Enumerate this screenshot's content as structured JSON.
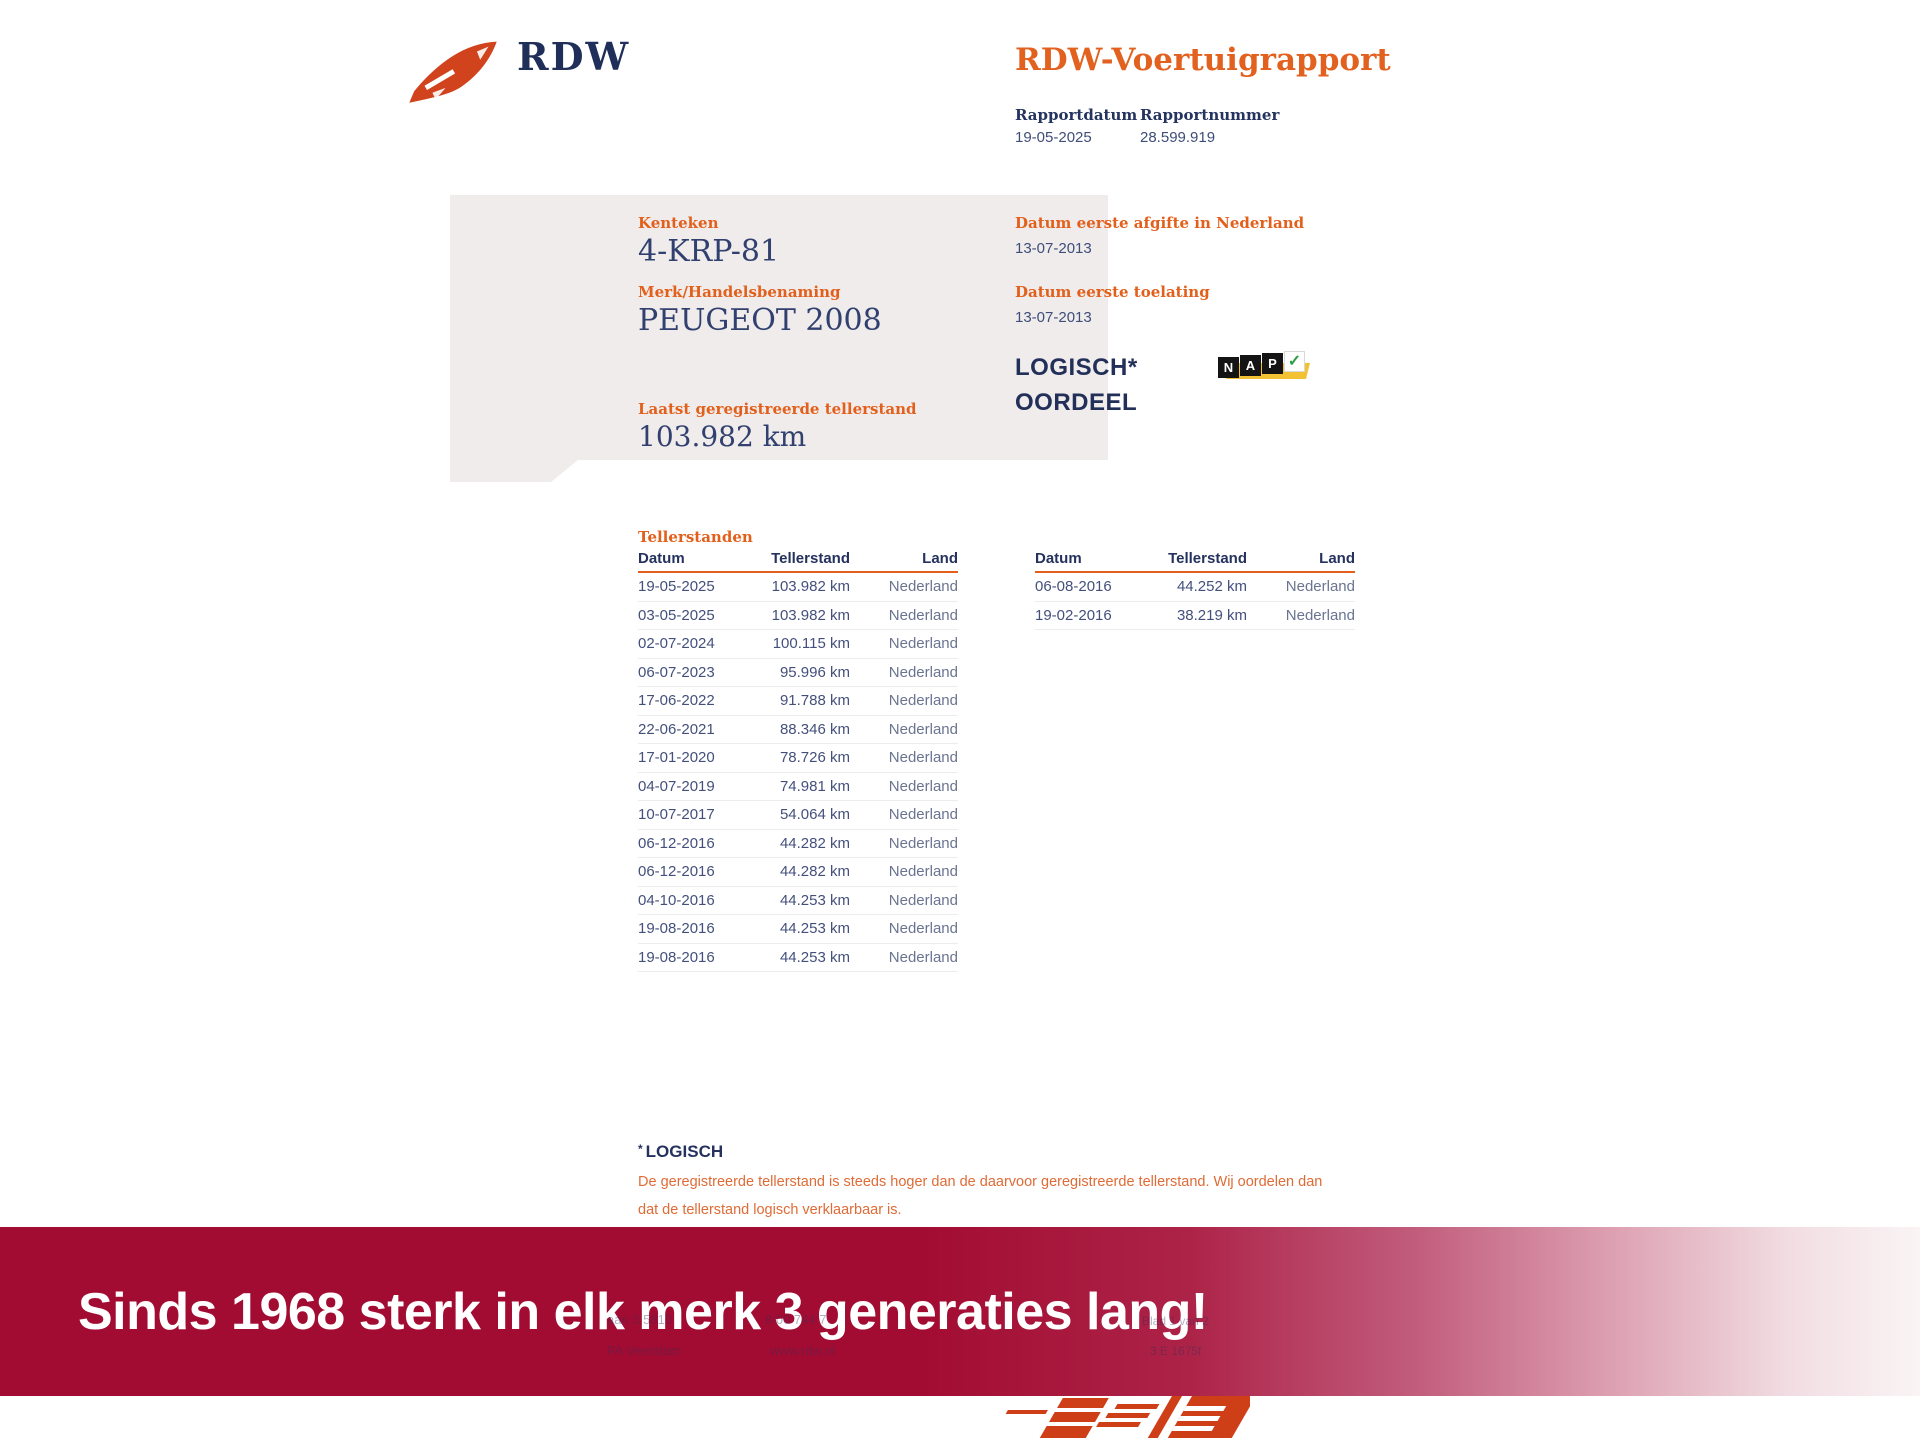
{
  "header": {
    "logo_text": "RDW",
    "title": "RDW-Voertuigrapport",
    "report_date_label": "Rapportdatum",
    "report_date": "19-05-2025",
    "report_number_label": "Rapportnummer",
    "report_number": "28.599.919"
  },
  "vehicle_panel": {
    "kenteken_label": "Kenteken",
    "kenteken": "4-KRP-81",
    "merk_label": "Merk/Handelsbenaming",
    "merk": "PEUGEOT 2008",
    "tellerstand_label": "Laatst geregistreerde tellerstand",
    "tellerstand": "103.982 km",
    "afgifte_label": "Datum eerste afgifte in Nederland",
    "afgifte": "13-07-2013",
    "toelating_label": "Datum eerste toelating",
    "toelating": "13-07-2013",
    "oordeel_line1": "LOGISCH*",
    "oordeel_line2": "OORDEEL",
    "nap": {
      "letters": [
        "N",
        "A",
        "P"
      ],
      "check": "✓"
    }
  },
  "tables": {
    "section_title": "Tellerstanden",
    "headers": [
      "Datum",
      "Tellerstand",
      "Land"
    ],
    "left_rows": [
      [
        "19-05-2025",
        "103.982 km",
        "Nederland"
      ],
      [
        "03-05-2025",
        "103.982 km",
        "Nederland"
      ],
      [
        "02-07-2024",
        "100.115 km",
        "Nederland"
      ],
      [
        "06-07-2023",
        "95.996 km",
        "Nederland"
      ],
      [
        "17-06-2022",
        "91.788 km",
        "Nederland"
      ],
      [
        "22-06-2021",
        "88.346 km",
        "Nederland"
      ],
      [
        "17-01-2020",
        "78.726 km",
        "Nederland"
      ],
      [
        "04-07-2019",
        "74.981 km",
        "Nederland"
      ],
      [
        "10-07-2017",
        "54.064 km",
        "Nederland"
      ],
      [
        "06-12-2016",
        "44.282 km",
        "Nederland"
      ],
      [
        "06-12-2016",
        "44.282 km",
        "Nederland"
      ],
      [
        "04-10-2016",
        "44.253 km",
        "Nederland"
      ],
      [
        "19-08-2016",
        "44.253 km",
        "Nederland"
      ],
      [
        "19-08-2016",
        "44.253 km",
        "Nederland"
      ]
    ],
    "right_rows": [
      [
        "06-08-2016",
        "44.252 km",
        "Nederland"
      ],
      [
        "19-02-2016",
        "38.219 km",
        "Nederland"
      ]
    ]
  },
  "footnote": {
    "asterisk": "*",
    "title": "LOGISCH",
    "line1": "De geregistreerde tellerstand is steeds hoger dan de daarvoor geregistreerde tellerstand. Wij oordelen dan",
    "line2": "dat de tellerstand logisch verklaarbaar is."
  },
  "banner": {
    "text": "Sinds 1968 sterk in elk merk 3 generaties lang!"
  },
  "ghost_footer": {
    "line1a": "aan 3 5810",
    "line1b": "8 00 744 7",
    "line2a": "PA Veendam",
    "line2b": "www.rdw.nl",
    "right1": "Blad 1 van 2",
    "right2": "3 E 1675f"
  },
  "colors": {
    "accent_orange": "#e3601c",
    "navy": "#24335f",
    "panel_gray": "#efeceb",
    "banner_crimson": "#a30c32",
    "nap_yellow": "#f2c234",
    "check_green": "#2f9e44",
    "logo_orange": "#d0431c"
  }
}
